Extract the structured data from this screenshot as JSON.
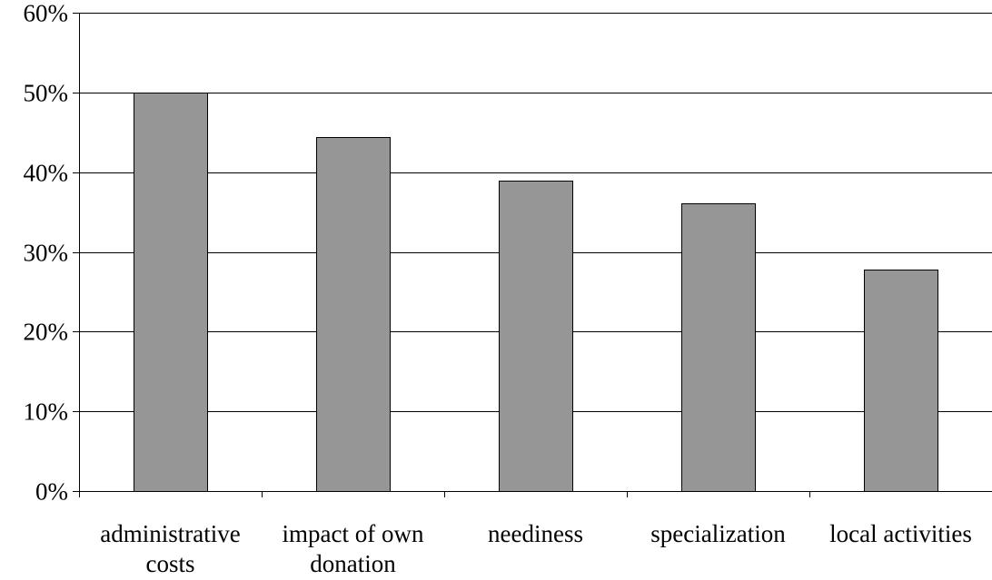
{
  "chart_data": {
    "type": "bar",
    "title": "",
    "xlabel": "",
    "ylabel": "",
    "categories": [
      [
        "administrative",
        "costs"
      ],
      [
        "impact of own",
        "donation"
      ],
      [
        "neediness"
      ],
      [
        "specialization"
      ],
      [
        "local activities"
      ]
    ],
    "values": [
      50.0,
      44.4,
      38.9,
      36.1,
      27.8
    ],
    "ylim": [
      0,
      60
    ],
    "yticks": [
      0,
      10,
      20,
      30,
      40,
      50,
      60
    ],
    "ytick_labels": [
      "0%",
      "10%",
      "20%",
      "30%",
      "40%",
      "50%",
      "60%"
    ],
    "grid": true,
    "legend": false,
    "bar_color": "#969696"
  }
}
